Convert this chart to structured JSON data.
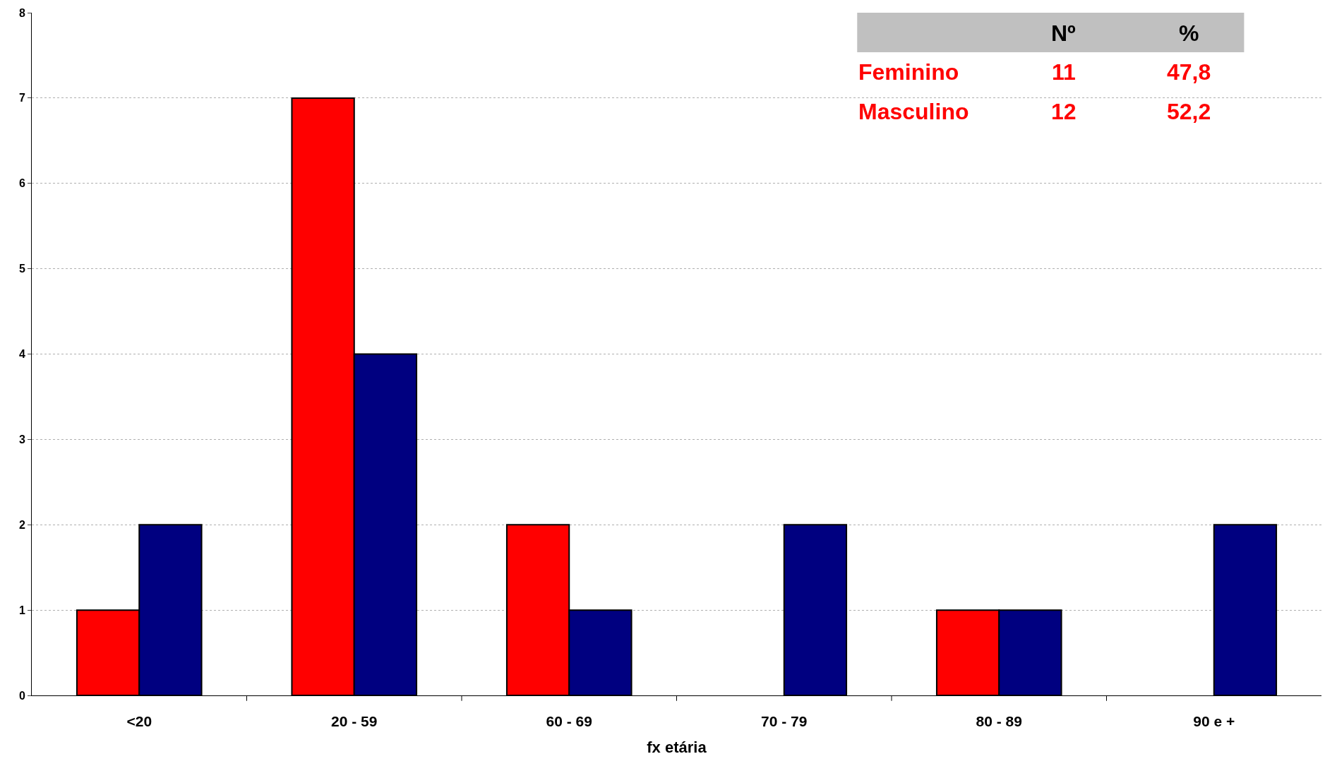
{
  "chart_data": {
    "type": "bar",
    "xlabel": "fx etária",
    "categories": [
      "<20",
      "20 - 59",
      "60 - 69",
      "70 - 79",
      "80 - 89",
      "90 e +"
    ],
    "series": [
      {
        "color": "#ff0000",
        "values": [
          1,
          7,
          2,
          0,
          1,
          0
        ]
      },
      {
        "color": "#000080",
        "values": [
          2,
          4,
          1,
          2,
          1,
          2
        ]
      }
    ],
    "ylim": [
      0,
      8
    ],
    "yticks": [
      0,
      1,
      2,
      3,
      4,
      5,
      6,
      7,
      8
    ],
    "grid": "y",
    "annotations": [
      "Nº",
      "%",
      "Feminino",
      "11",
      "47,8",
      "Masculino",
      "12",
      "52,2"
    ]
  }
}
